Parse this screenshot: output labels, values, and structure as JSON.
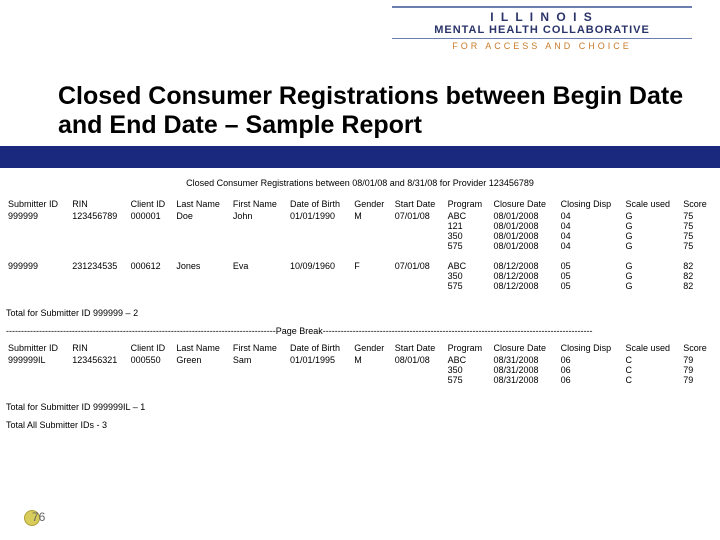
{
  "branding": {
    "line1": "I L L I N O I S",
    "line2": "MENTAL HEALTH COLLABORATIVE",
    "line3": "FOR ACCESS AND CHOICE"
  },
  "title": "Closed Consumer Registrations between Begin Date and End Date – Sample Report",
  "report_header": "Closed Consumer Registrations between 08/01/08 and 8/31/08 for Provider 123456789",
  "columns": [
    "Submitter ID",
    "RIN",
    "Client ID",
    "Last Name",
    "First Name",
    "Date of Birth",
    "Gender",
    "Start Date",
    "Program",
    "Closure Date",
    "Closing Disp",
    "Scale used",
    "Score"
  ],
  "section1": {
    "rows": [
      {
        "submitter": "999999",
        "rin": "123456789",
        "client": "000001",
        "last": "Doe",
        "first": "John",
        "dob": "01/01/1990",
        "gender": "M",
        "start": "07/01/08",
        "program": [
          "ABC",
          "121",
          "350",
          "575"
        ],
        "closure": [
          "08/01/2008",
          "08/01/2008",
          "08/01/2008",
          "08/01/2008"
        ],
        "disp": [
          "04",
          "04",
          "04",
          "04"
        ],
        "scale": [
          "G",
          "G",
          "G",
          "G"
        ],
        "score": [
          "75",
          "75",
          "75",
          "75"
        ]
      },
      {
        "submitter": "999999",
        "rin": "231234535",
        "client": "000612",
        "last": "Jones",
        "first": "Eva",
        "dob": "10/09/1960",
        "gender": "F",
        "start": "07/01/08",
        "program": [
          "ABC",
          "350",
          "575"
        ],
        "closure": [
          "08/12/2008",
          "08/12/2008",
          "08/12/2008"
        ],
        "disp": [
          "05",
          "05",
          "05"
        ],
        "scale": [
          "G",
          "G",
          "G"
        ],
        "score": [
          "82",
          "82",
          "82"
        ]
      }
    ],
    "total": "Total for Submitter ID 999999 – 2"
  },
  "page_break_label": "Page   Break",
  "section2": {
    "rows": [
      {
        "submitter": "999999IL",
        "rin": "123456321",
        "client": "000550",
        "last": "Green",
        "first": "Sam",
        "dob": "01/01/1995",
        "gender": "M",
        "start": "08/01/08",
        "program": [
          "ABC",
          "350",
          "575"
        ],
        "closure": [
          "08/31/2008",
          "08/31/2008",
          "08/31/2008"
        ],
        "disp": [
          "06",
          "06",
          "06"
        ],
        "scale": [
          "C",
          "C",
          "C"
        ],
        "score": [
          "79",
          "79",
          "79"
        ]
      }
    ],
    "totals": [
      "Total for Submitter ID 999999IL – 1",
      "Total All Submitter IDs - 3"
    ]
  },
  "slide_number": "76",
  "colors": {
    "bar": "#1a287e",
    "brand_blue": "#2b346a",
    "brand_orange": "#c97b2a"
  }
}
